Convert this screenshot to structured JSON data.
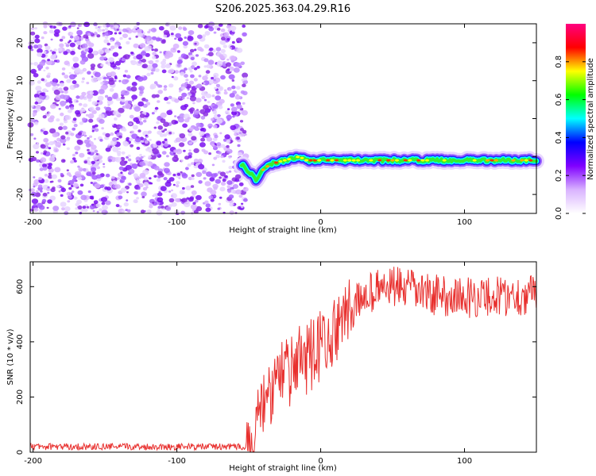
{
  "title": "S206.2025.363.04.29.R16",
  "colors": {
    "scatter": "#8a2be2",
    "snr_line": "#e8302e",
    "colorbar": [
      "#ffffff",
      "#d9b3ff",
      "#8000ff",
      "#0000ff",
      "#00ffff",
      "#00ff00",
      "#ffff00",
      "#ff0000",
      "#ff0080"
    ]
  },
  "chart_data": [
    {
      "type": "heatmap",
      "title": "S206.2025.363.04.29.R16",
      "xlabel": "Height of straight line (km)",
      "ylabel": "Frequency (Hz)",
      "xlim": [
        -202,
        150
      ],
      "ylim": [
        -25,
        25
      ],
      "xticks": [
        -200,
        -100,
        0,
        100
      ],
      "yticks": [
        -20,
        -10,
        0,
        10,
        20
      ],
      "noise_region_x": [
        -202,
        -52
      ],
      "ridge": {
        "x": [
          -55,
          -50,
          -45,
          -40,
          -35,
          -30,
          -25,
          -20,
          -15,
          -10,
          0,
          20,
          50,
          80,
          110,
          150
        ],
        "frequency": [
          -12,
          -14,
          -16,
          -13.5,
          -12,
          -11.5,
          -11,
          -10.5,
          -10,
          -11,
          -11,
          -11,
          -11,
          -11,
          -11,
          -11
        ]
      },
      "colorbar": {
        "label": "Normalized spectral amplitude",
        "range": [
          0,
          1
        ],
        "ticks": [
          "0.0",
          "0.2",
          "0.4",
          "0.6",
          "0.8"
        ]
      }
    },
    {
      "type": "line",
      "xlabel": "Height of straight line (km)",
      "ylabel": "SNR (10 * v/v)",
      "xlim": [
        -202,
        150
      ],
      "ylim": [
        0,
        690
      ],
      "xticks": [
        -200,
        -100,
        0,
        100
      ],
      "yticks": [
        0,
        200,
        400,
        600
      ],
      "series": [
        {
          "name": "SNR",
          "x": [
            -202,
            -52,
            -40,
            -30,
            -20,
            -10,
            0,
            10,
            20,
            30,
            40,
            50,
            60,
            80,
            100,
            120,
            150
          ],
          "values": [
            20,
            20,
            150,
            260,
            300,
            340,
            390,
            430,
            500,
            570,
            590,
            600,
            590,
            570,
            560,
            565,
            570
          ]
        }
      ]
    }
  ]
}
